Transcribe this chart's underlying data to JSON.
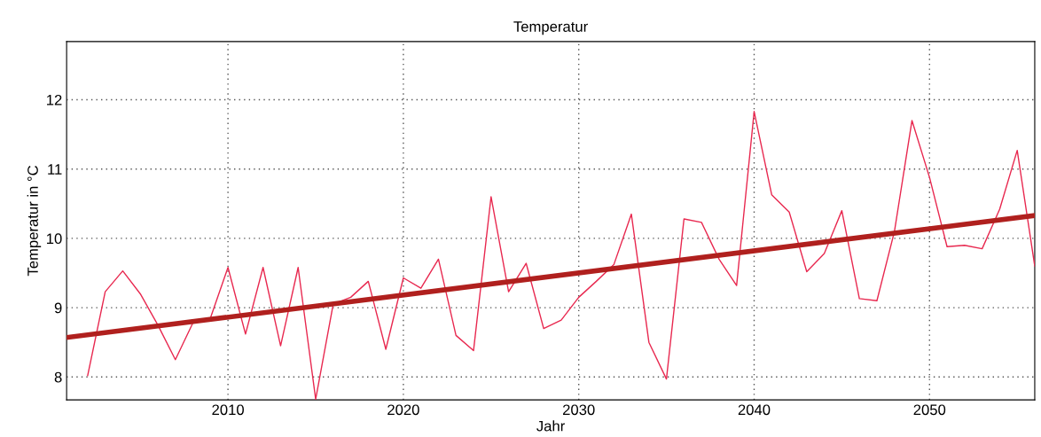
{
  "chart_data": {
    "type": "line",
    "title": "Temperatur",
    "xlabel": "Jahr",
    "ylabel": "Temperatur in °C",
    "x": [
      2002,
      2003,
      2004,
      2005,
      2006,
      2007,
      2008,
      2009,
      2010,
      2011,
      2012,
      2013,
      2014,
      2015,
      2016,
      2017,
      2018,
      2019,
      2020,
      2021,
      2022,
      2023,
      2024,
      2025,
      2026,
      2027,
      2028,
      2029,
      2030,
      2031,
      2032,
      2033,
      2034,
      2035,
      2036,
      2037,
      2038,
      2039,
      2040,
      2041,
      2042,
      2043,
      2044,
      2045,
      2046,
      2047,
      2048,
      2049,
      2050,
      2051,
      2052,
      2053,
      2054,
      2055,
      2056
    ],
    "series": [
      {
        "color": "#e8284f",
        "values": [
          8.02,
          9.23,
          9.53,
          9.2,
          8.75,
          8.25,
          8.78,
          8.85,
          9.58,
          8.62,
          9.58,
          8.45,
          9.58,
          7.68,
          9.05,
          9.15,
          9.38,
          8.4,
          9.43,
          9.28,
          9.7,
          8.6,
          8.38,
          10.6,
          9.23,
          9.64,
          8.7,
          8.82,
          9.15,
          9.38,
          9.62,
          10.35,
          8.5,
          7.97,
          10.28,
          10.23,
          9.7,
          9.32,
          11.83,
          10.63,
          10.38,
          9.52,
          9.78,
          10.4,
          9.13,
          9.1,
          10.1,
          11.7,
          10.88,
          9.88,
          9.9,
          9.85,
          10.42,
          11.27,
          9.6
        ]
      },
      {
        "color": "#b0201e",
        "x": [
          2000.8,
          2056
        ],
        "values": [
          8.57,
          10.33
        ]
      }
    ],
    "xlim": [
      2000.8,
      2056
    ],
    "ylim": [
      7.67,
      12.84
    ],
    "xticks": [
      2010,
      2020,
      2030,
      2040,
      2050
    ],
    "yticks": [
      8,
      9,
      10,
      11,
      12
    ],
    "grid": true,
    "line_style": "solid",
    "marker": "none"
  }
}
